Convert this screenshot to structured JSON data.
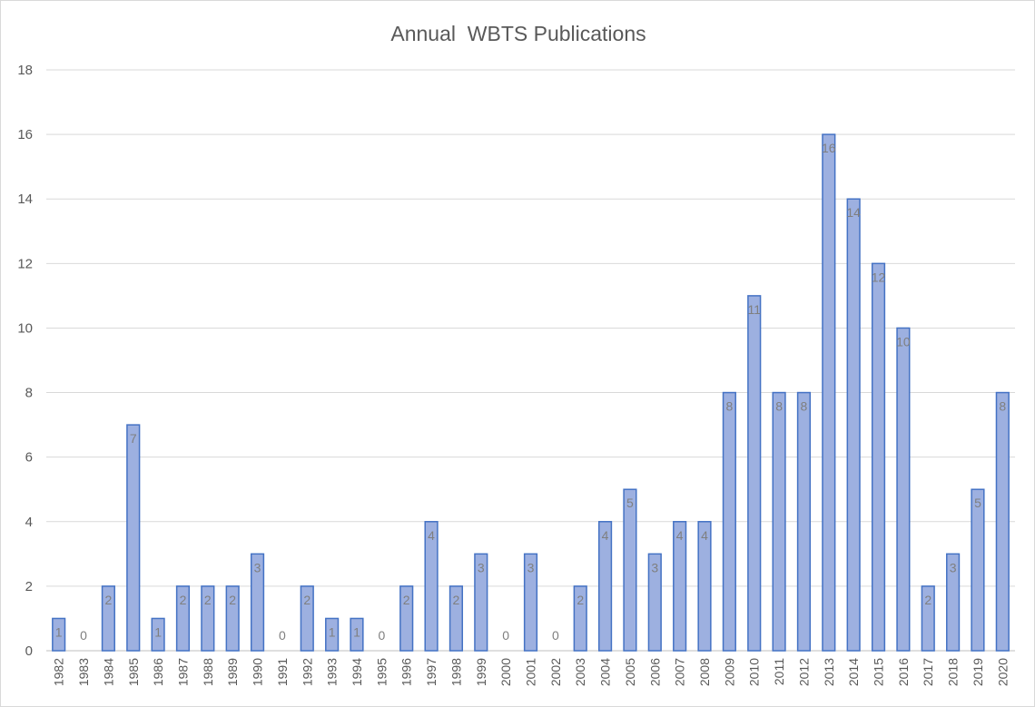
{
  "chart_data": {
    "type": "bar",
    "title": "Annual  WBTS Publications",
    "xlabel": "",
    "ylabel": "",
    "ylim": [
      0,
      18
    ],
    "yticks": [
      0,
      2,
      4,
      6,
      8,
      10,
      12,
      14,
      16,
      18
    ],
    "grid": true,
    "legend": "none",
    "bar_fill": "#9db0e0",
    "bar_stroke": "#4472c4",
    "categories": [
      "1982",
      "1983",
      "1984",
      "1985",
      "1986",
      "1987",
      "1988",
      "1989",
      "1990",
      "1991",
      "1992",
      "1993",
      "1994",
      "1995",
      "1996",
      "1997",
      "1998",
      "1999",
      "2000",
      "2001",
      "2002",
      "2003",
      "2004",
      "2005",
      "2006",
      "2007",
      "2008",
      "2009",
      "2010",
      "2011",
      "2012",
      "2013",
      "2014",
      "2015",
      "2016",
      "2017",
      "2018",
      "2019",
      "2020"
    ],
    "values": [
      1,
      0,
      2,
      7,
      1,
      2,
      2,
      2,
      3,
      0,
      2,
      1,
      1,
      0,
      2,
      4,
      2,
      3,
      0,
      3,
      0,
      2,
      4,
      5,
      3,
      4,
      4,
      8,
      11,
      8,
      8,
      16,
      14,
      12,
      10,
      2,
      3,
      5,
      8
    ]
  }
}
